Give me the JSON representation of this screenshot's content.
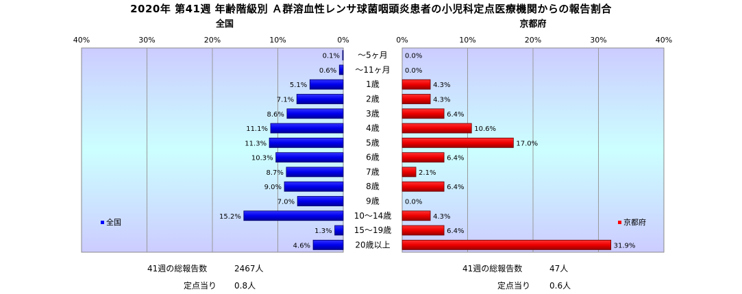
{
  "title": "2020年 第41週 年齢階級別 Ａ群溶血性レンサ球菌咽頭炎患者の小児科定点医療機関からの報告割合",
  "left_panel": {
    "heading": "全国",
    "legend": "全国",
    "bar_color": "#0000ff"
  },
  "right_panel": {
    "heading": "京都府",
    "legend": "京都府",
    "bar_color": "#ff0000"
  },
  "axis": {
    "ticks": [
      "40%",
      "30%",
      "20%",
      "10%",
      "0%"
    ],
    "ticks_right": [
      "0%",
      "10%",
      "20%",
      "30%",
      "40%"
    ]
  },
  "footer": {
    "left": {
      "total_label": "41週の総報告数",
      "total_value": "2467人",
      "per_label": "定点当り",
      "per_value": "0.8人"
    },
    "right": {
      "total_label": "41週の総報告数",
      "total_value": "47人",
      "per_label": "定点当り",
      "per_value": "0.6人"
    }
  },
  "chart_data": [
    {
      "type": "bar",
      "title": "全国",
      "orientation": "horizontal",
      "direction": "leftward",
      "categories": [
        "～5ヶ月",
        "～11ヶ月",
        "1歳",
        "2歳",
        "3歳",
        "4歳",
        "5歳",
        "6歳",
        "7歳",
        "8歳",
        "9歳",
        "10～14歳",
        "15～19歳",
        "20歳以上"
      ],
      "series": [
        {
          "name": "全国",
          "values": [
            0.1,
            0.6,
            5.1,
            7.1,
            8.6,
            11.1,
            11.3,
            10.3,
            8.7,
            9.0,
            7.0,
            15.2,
            1.3,
            4.6
          ]
        }
      ],
      "labels": [
        "0.1%",
        "0.6%",
        "5.1%",
        "7.1%",
        "8.6%",
        "11.1%",
        "11.3%",
        "10.3%",
        "8.7%",
        "9.0%",
        "7.0%",
        "15.2%",
        "1.3%",
        "4.6%"
      ],
      "xlim": [
        0,
        40
      ],
      "unit": "%",
      "grid": true,
      "legend_position": "bottom-left"
    },
    {
      "type": "bar",
      "title": "京都府",
      "orientation": "horizontal",
      "direction": "rightward",
      "categories": [
        "～5ヶ月",
        "～11ヶ月",
        "1歳",
        "2歳",
        "3歳",
        "4歳",
        "5歳",
        "6歳",
        "7歳",
        "8歳",
        "9歳",
        "10～14歳",
        "15～19歳",
        "20歳以上"
      ],
      "series": [
        {
          "name": "京都府",
          "values": [
            0.0,
            0.0,
            4.3,
            4.3,
            6.4,
            10.6,
            17.0,
            6.4,
            2.1,
            6.4,
            0.0,
            4.3,
            6.4,
            31.9
          ]
        }
      ],
      "labels": [
        "0.0%",
        "0.0%",
        "4.3%",
        "4.3%",
        "6.4%",
        "10.6%",
        "17.0%",
        "6.4%",
        "2.1%",
        "6.4%",
        "0.0%",
        "4.3%",
        "6.4%",
        "31.9%"
      ],
      "xlim": [
        0,
        40
      ],
      "unit": "%",
      "grid": true,
      "legend_position": "bottom-right"
    }
  ]
}
